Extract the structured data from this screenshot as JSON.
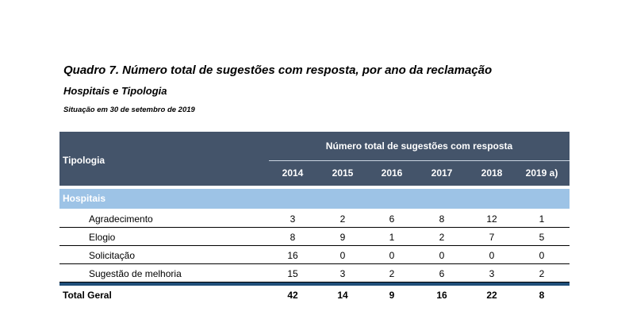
{
  "title": "Quadro 7. Número total de sugestões com resposta,  por ano da reclamação",
  "subtitle": "Hospitais e Tipologia",
  "situacao": "Situação em 30 de setembro de 2019",
  "table": {
    "tipologia_header": "Tipologia",
    "group_header": "Número total de sugestões com resposta",
    "years": [
      "2014",
      "2015",
      "2016",
      "2017",
      "2018",
      "2019 a)"
    ],
    "section_label": "Hospitais",
    "rows": [
      {
        "label": "Agradecimento",
        "values": [
          "3",
          "2",
          "6",
          "8",
          "12",
          "1"
        ]
      },
      {
        "label": "Elogio",
        "values": [
          "8",
          "9",
          "1",
          "2",
          "7",
          "5"
        ]
      },
      {
        "label": "Solicitação",
        "values": [
          "16",
          "0",
          "0",
          "0",
          "0",
          "0"
        ]
      },
      {
        "label": "Sugestão de melhoria",
        "values": [
          "15",
          "3",
          "2",
          "6",
          "3",
          "2"
        ]
      }
    ],
    "total": {
      "label": "Total Geral",
      "values": [
        "42",
        "14",
        "9",
        "16",
        "22",
        "8"
      ]
    }
  },
  "colors": {
    "header_bg": "#44546a",
    "section_bg": "#9dc3e6",
    "total_rule": "#1f4e79"
  }
}
